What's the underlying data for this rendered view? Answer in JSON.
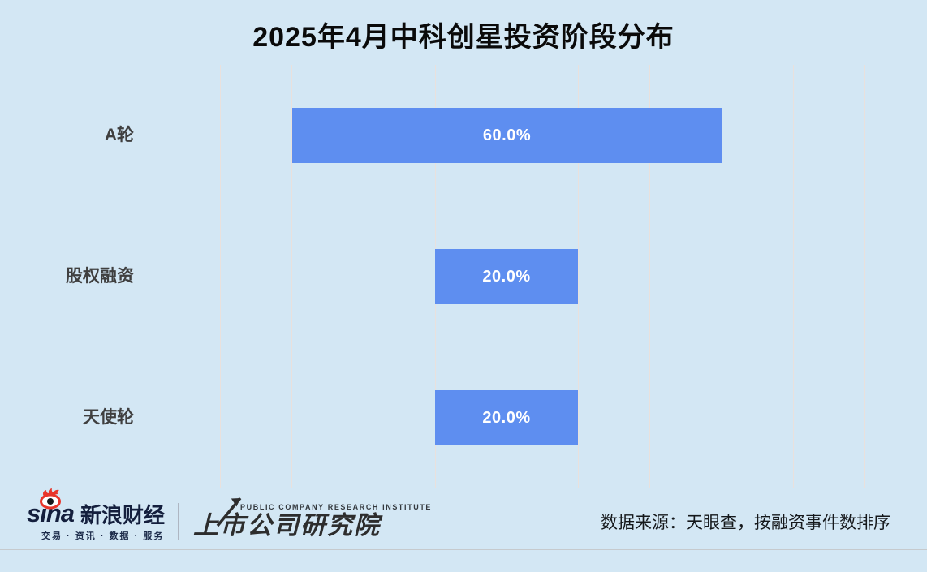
{
  "title": "2025年4月中科创星投资阶段分布",
  "chart_data": {
    "type": "bar",
    "orientation": "horizontal-centered",
    "title": "2025年4月中科创星投资阶段分布",
    "categories": [
      "A轮",
      "股权融资",
      "天使轮"
    ],
    "values": [
      60.0,
      20.0,
      20.0
    ],
    "value_labels": [
      "60.0%",
      "20.0%",
      "20.0%"
    ],
    "xlim": [
      0,
      100
    ],
    "grid": true,
    "gridline_count": 11,
    "legend": "none",
    "bar_color": "#5e8ef0",
    "value_label_color": "#ffffff",
    "category_label_color": "#3f3f3f",
    "gridline_color": "#e9e1dd",
    "background_color": "#d3e7f4"
  },
  "footer": {
    "sina_word": "sina",
    "sina_name": "新浪财经",
    "sina_tagline": "交易 · 资讯 · 数据 · 服务",
    "institute_en": "PUBLIC COMPANY RESEARCH INSTITUTE",
    "institute_name": "上市公司研究院",
    "source_text": "数据来源：天眼查，按融资事件数排序"
  },
  "colors": {
    "background": "#d3e7f4",
    "bar": "#5e8ef0",
    "gridline": "#e9e1dd",
    "sina_navy": "#141f3d",
    "sina_red": "#e8352a",
    "institute_dark": "#2d2d2d"
  }
}
